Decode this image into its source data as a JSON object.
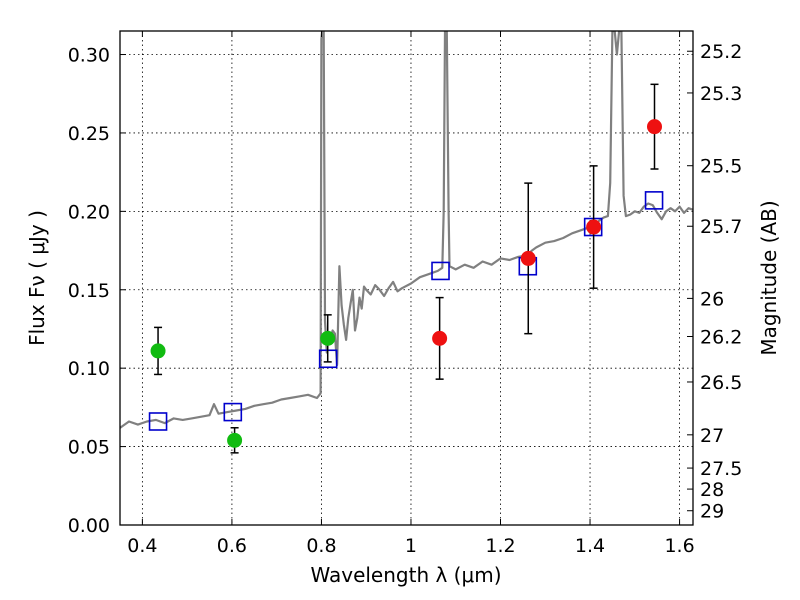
{
  "chart_data": {
    "type": "scatter",
    "xlabel": "Wavelength  λ (μm)",
    "ylabel": "Flux  Fν  ( μJy )",
    "y2label": "Magnitude (AB)",
    "xlim": [
      0.35,
      1.63
    ],
    "ylim": [
      0.0,
      0.315
    ],
    "grid": true,
    "x_ticks": [
      "0.4",
      "0.6",
      "0.8",
      "1",
      "1.2",
      "1.4",
      "1.6"
    ],
    "y_ticks": [
      "0.00",
      "0.05",
      "0.10",
      "0.15",
      "0.20",
      "0.25",
      "0.30"
    ],
    "mag_ticks": [
      {
        "label": "25.2",
        "flux": 0.3021
      },
      {
        "label": "25.3",
        "flux": 0.2755
      },
      {
        "label": "25.5",
        "flux": 0.2291
      },
      {
        "label": "25.7",
        "flux": 0.1905
      },
      {
        "label": "26",
        "flux": 0.1445
      },
      {
        "label": "26.2",
        "flux": 0.1202
      },
      {
        "label": "26.5",
        "flux": 0.0912
      },
      {
        "label": "27",
        "flux": 0.0575
      },
      {
        "label": "27.5",
        "flux": 0.0363
      },
      {
        "label": "28",
        "flux": 0.0229
      },
      {
        "label": "29",
        "flux": 0.0091
      }
    ],
    "series": [
      {
        "style": "line",
        "color": "#808080",
        "points": [
          [
            0.35,
            0.062
          ],
          [
            0.37,
            0.066
          ],
          [
            0.39,
            0.064
          ],
          [
            0.41,
            0.066
          ],
          [
            0.43,
            0.067
          ],
          [
            0.45,
            0.065
          ],
          [
            0.47,
            0.068
          ],
          [
            0.49,
            0.067
          ],
          [
            0.51,
            0.068
          ],
          [
            0.53,
            0.069
          ],
          [
            0.55,
            0.07
          ],
          [
            0.56,
            0.077
          ],
          [
            0.57,
            0.071
          ],
          [
            0.59,
            0.072
          ],
          [
            0.61,
            0.073
          ],
          [
            0.63,
            0.074
          ],
          [
            0.65,
            0.076
          ],
          [
            0.67,
            0.077
          ],
          [
            0.69,
            0.078
          ],
          [
            0.71,
            0.08
          ],
          [
            0.73,
            0.081
          ],
          [
            0.75,
            0.082
          ],
          [
            0.77,
            0.083
          ],
          [
            0.79,
            0.081
          ],
          [
            0.798,
            0.084
          ],
          [
            0.8,
            0.31
          ],
          [
            0.802,
            0.315
          ],
          [
            0.805,
            0.315
          ],
          [
            0.808,
            0.13
          ],
          [
            0.812,
            0.11
          ],
          [
            0.816,
            0.122
          ],
          [
            0.82,
            0.118
          ],
          [
            0.825,
            0.124
          ],
          [
            0.83,
            0.122
          ],
          [
            0.835,
            0.102
          ],
          [
            0.84,
            0.165
          ],
          [
            0.845,
            0.14
          ],
          [
            0.85,
            0.128
          ],
          [
            0.855,
            0.118
          ],
          [
            0.86,
            0.132
          ],
          [
            0.865,
            0.141
          ],
          [
            0.87,
            0.15
          ],
          [
            0.875,
            0.124
          ],
          [
            0.88,
            0.132
          ],
          [
            0.885,
            0.145
          ],
          [
            0.89,
            0.138
          ],
          [
            0.895,
            0.152
          ],
          [
            0.9,
            0.15
          ],
          [
            0.91,
            0.147
          ],
          [
            0.92,
            0.153
          ],
          [
            0.93,
            0.15
          ],
          [
            0.94,
            0.146
          ],
          [
            0.95,
            0.151
          ],
          [
            0.96,
            0.155
          ],
          [
            0.97,
            0.149
          ],
          [
            0.98,
            0.151
          ],
          [
            1.0,
            0.154
          ],
          [
            1.02,
            0.158
          ],
          [
            1.04,
            0.16
          ],
          [
            1.06,
            0.162
          ],
          [
            1.07,
            0.164
          ],
          [
            1.073,
            0.2
          ],
          [
            1.076,
            0.315
          ],
          [
            1.08,
            0.315
          ],
          [
            1.084,
            0.2
          ],
          [
            1.086,
            0.165
          ],
          [
            1.1,
            0.163
          ],
          [
            1.12,
            0.166
          ],
          [
            1.14,
            0.164
          ],
          [
            1.16,
            0.168
          ],
          [
            1.18,
            0.166
          ],
          [
            1.2,
            0.17
          ],
          [
            1.22,
            0.169
          ],
          [
            1.24,
            0.171
          ],
          [
            1.26,
            0.172
          ],
          [
            1.27,
            0.175
          ],
          [
            1.28,
            0.177
          ],
          [
            1.3,
            0.18
          ],
          [
            1.32,
            0.181
          ],
          [
            1.34,
            0.183
          ],
          [
            1.36,
            0.186
          ],
          [
            1.38,
            0.188
          ],
          [
            1.4,
            0.19
          ],
          [
            1.41,
            0.191
          ],
          [
            1.42,
            0.194
          ],
          [
            1.43,
            0.196
          ],
          [
            1.44,
            0.197
          ],
          [
            1.445,
            0.218
          ],
          [
            1.45,
            0.315
          ],
          [
            1.455,
            0.315
          ],
          [
            1.46,
            0.3
          ],
          [
            1.465,
            0.315
          ],
          [
            1.47,
            0.315
          ],
          [
            1.475,
            0.21
          ],
          [
            1.48,
            0.197
          ],
          [
            1.49,
            0.198
          ],
          [
            1.5,
            0.2
          ],
          [
            1.51,
            0.199
          ],
          [
            1.52,
            0.203
          ],
          [
            1.53,
            0.205
          ],
          [
            1.54,
            0.204
          ],
          [
            1.55,
            0.199
          ],
          [
            1.56,
            0.195
          ],
          [
            1.57,
            0.2
          ],
          [
            1.58,
            0.202
          ],
          [
            1.59,
            0.2
          ],
          [
            1.6,
            0.203
          ],
          [
            1.61,
            0.199
          ],
          [
            1.62,
            0.202
          ],
          [
            1.63,
            0.201
          ]
        ]
      },
      {
        "style": "open-square",
        "color": "#0000cc",
        "x": [
          0.435,
          0.602,
          0.815,
          1.066,
          1.261,
          1.407,
          1.543
        ],
        "y": [
          0.066,
          0.072,
          0.106,
          0.162,
          0.165,
          0.19,
          0.207
        ]
      },
      {
        "style": "circle",
        "color": "#11bb11",
        "x": [
          0.435,
          0.606,
          0.814
        ],
        "y": [
          0.111,
          0.054,
          0.119
        ],
        "yerr": [
          0.015,
          0.008,
          0.015
        ]
      },
      {
        "style": "circle",
        "color": "#ee1111",
        "x": [
          1.064,
          1.262,
          1.408,
          1.544
        ],
        "y": [
          0.119,
          0.17,
          0.19,
          0.254
        ],
        "yerr": [
          0.026,
          0.048,
          0.039,
          0.027
        ]
      }
    ]
  }
}
